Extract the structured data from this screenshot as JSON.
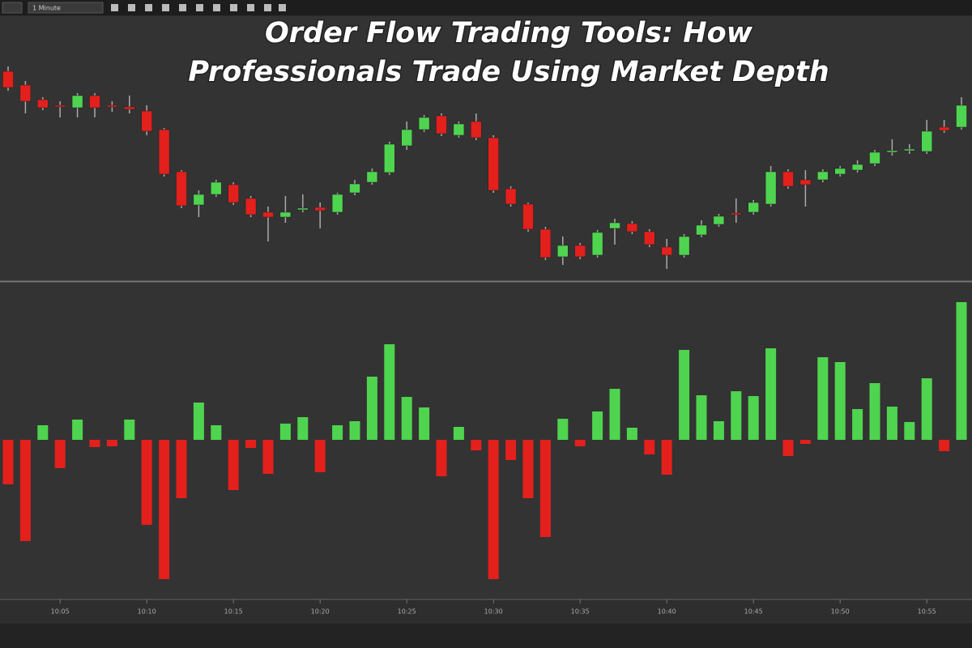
{
  "title": [
    "Order Flow Trading Tools: How",
    "Professionals Trade Using Market Depth"
  ],
  "toolbar": {
    "interval": "1 Minute"
  },
  "chart_data": [
    {
      "type": "candlestick",
      "up_color": "#4fd44f",
      "down_color": "#e3201c",
      "ylim": [
        0,
        325
      ],
      "open": [
        257,
        240,
        222,
        215,
        212,
        227,
        215,
        213,
        208,
        185,
        133,
        92,
        105,
        117,
        100,
        83,
        77,
        87,
        89,
        83,
        107,
        120,
        132,
        165,
        185,
        202,
        178,
        195,
        175,
        112,
        93,
        62,
        28,
        42,
        30,
        63,
        69,
        59,
        40,
        30,
        55,
        68,
        82,
        83,
        93,
        133,
        123,
        123,
        130,
        135,
        143,
        158,
        160,
        158,
        188,
        188
      ],
      "high": [
        263,
        245,
        225,
        220,
        230,
        230,
        220,
        227,
        215,
        187,
        135,
        110,
        123,
        120,
        103,
        90,
        103,
        105,
        95,
        107,
        123,
        137,
        170,
        195,
        203,
        205,
        195,
        205,
        178,
        115,
        95,
        65,
        53,
        45,
        61,
        75,
        72,
        62,
        50,
        56,
        73,
        81,
        100,
        98,
        140,
        136,
        135,
        136,
        140,
        147,
        160,
        173,
        167,
        197,
        197,
        225
      ],
      "low": [
        233,
        205,
        209,
        200,
        200,
        200,
        207,
        205,
        178,
        127,
        88,
        77,
        102,
        92,
        77,
        47,
        70,
        83,
        63,
        80,
        104,
        117,
        129,
        160,
        182,
        177,
        175,
        172,
        107,
        90,
        59,
        24,
        18,
        25,
        27,
        43,
        56,
        40,
        13,
        27,
        52,
        65,
        70,
        80,
        90,
        112,
        90,
        120,
        127,
        132,
        140,
        153,
        155,
        155,
        181,
        185
      ],
      "close": [
        237,
        220,
        212,
        214,
        227,
        212,
        214,
        210,
        183,
        130,
        91,
        105,
        120,
        95,
        80,
        77,
        83,
        88,
        85,
        105,
        118,
        133,
        167,
        185,
        200,
        180,
        192,
        175,
        110,
        93,
        62,
        27,
        42,
        28,
        58,
        70,
        59,
        43,
        30,
        53,
        67,
        78,
        81,
        95,
        133,
        115,
        117,
        133,
        137,
        142,
        157,
        159,
        161,
        183,
        184,
        215
      ]
    },
    {
      "type": "bar",
      "up_color": "#4fd44f",
      "down_color": "#e3201c",
      "ylim": [
        -195,
        195
      ],
      "categories": [
        null,
        null,
        null,
        "10:05",
        null,
        null,
        null,
        null,
        "10:10",
        null,
        null,
        null,
        null,
        "10:15",
        null,
        null,
        null,
        null,
        "10:20",
        null,
        null,
        null,
        null,
        "10:25",
        null,
        null,
        null,
        null,
        "10:30",
        null,
        null,
        null,
        null,
        "10:35",
        null,
        null,
        null,
        null,
        "10:40",
        null,
        null,
        null,
        null,
        "10:45",
        null,
        null,
        null,
        null,
        "10:50",
        null,
        null,
        null,
        null,
        "10:55",
        null,
        null
      ],
      "values": [
        -55,
        -125,
        18,
        -35,
        25,
        -9,
        -8,
        25,
        -105,
        -172,
        -72,
        46,
        18,
        -62,
        -10,
        -42,
        20,
        28,
        -40,
        18,
        23,
        78,
        118,
        53,
        40,
        -45,
        16,
        -13,
        -172,
        -25,
        -72,
        -120,
        26,
        -8,
        35,
        63,
        15,
        -18,
        -43,
        111,
        55,
        23,
        60,
        54,
        113,
        -20,
        -5,
        102,
        96,
        38,
        70,
        41,
        22,
        76,
        -14,
        170
      ]
    }
  ]
}
